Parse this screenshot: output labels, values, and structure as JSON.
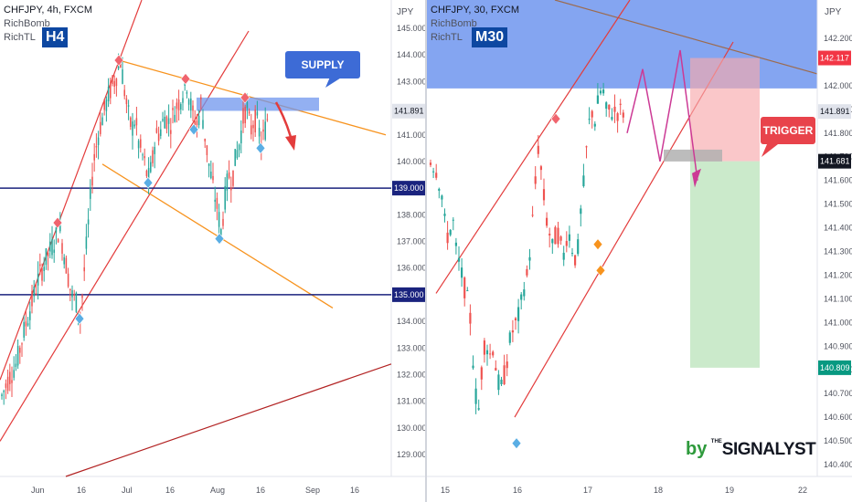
{
  "chart_data": [
    {
      "type": "candlestick",
      "symbol_line": "CHFJPY, 4h, FXCM",
      "indicators": [
        "RichBomb",
        "RichTL"
      ],
      "timeframe_badge": "H4",
      "y_unit": "JPY",
      "ylim": [
        128.3,
        146.2
      ],
      "y_ticks": [
        "145.000",
        "144.000",
        "143.000",
        "142.000",
        "141.000",
        "140.000",
        "139.000",
        "138.000",
        "137.000",
        "136.000",
        "135.000",
        "134.000",
        "133.000",
        "132.000",
        "131.000",
        "130.000",
        "129.000"
      ],
      "x_ticks": [
        "Jun",
        "16",
        "Jul",
        "16",
        "Aug",
        "16",
        "Sep",
        "16"
      ],
      "current_price_label": "141.891",
      "horizontal_levels": [
        {
          "label": "139.000",
          "value": 139.0
        },
        {
          "label": "135.000",
          "value": 135.0
        }
      ],
      "annotation": "SUPPLY ZONE",
      "series_points": [
        [
          0,
          131.2
        ],
        [
          8,
          131.9
        ],
        [
          16,
          132.4
        ],
        [
          24,
          133.6
        ],
        [
          32,
          134.6
        ],
        [
          40,
          135.6
        ],
        [
          48,
          136.3
        ],
        [
          56,
          136.9
        ],
        [
          63,
          137.5
        ],
        [
          70,
          136.2
        ],
        [
          76,
          135.0
        ],
        [
          82,
          134.7
        ],
        [
          86,
          134.1
        ],
        [
          90,
          135.8
        ],
        [
          95,
          137.8
        ],
        [
          100,
          139.9
        ],
        [
          106,
          141.1
        ],
        [
          112,
          141.9
        ],
        [
          118,
          142.6
        ],
        [
          124,
          143.1
        ],
        [
          130,
          143.8
        ],
        [
          134,
          142.7
        ],
        [
          138,
          141.8
        ],
        [
          142,
          141.2
        ],
        [
          146,
          141.6
        ],
        [
          150,
          140.6
        ],
        [
          155,
          140.1
        ],
        [
          160,
          139.3
        ],
        [
          164,
          139.8
        ],
        [
          168,
          140.9
        ],
        [
          174,
          141.2
        ],
        [
          178,
          141.7
        ],
        [
          184,
          141.4
        ],
        [
          190,
          142.0
        ],
        [
          196,
          142.4
        ],
        [
          202,
          143.0
        ],
        [
          206,
          142.2
        ],
        [
          210,
          141.6
        ],
        [
          214,
          141.4
        ],
        [
          218,
          142.2
        ],
        [
          222,
          141.0
        ],
        [
          226,
          140.0
        ],
        [
          230,
          139.2
        ],
        [
          236,
          138.2
        ],
        [
          240,
          137.3
        ],
        [
          244,
          138.6
        ],
        [
          248,
          139.5
        ],
        [
          252,
          139.3
        ],
        [
          256,
          140.2
        ],
        [
          260,
          140.7
        ],
        [
          264,
          141.6
        ],
        [
          268,
          142.1
        ],
        [
          272,
          141.1
        ],
        [
          276,
          141.6
        ],
        [
          280,
          141.4
        ],
        [
          284,
          140.6
        ],
        [
          288,
          141.2
        ],
        [
          292,
          141.9
        ]
      ]
    },
    {
      "type": "candlestick",
      "symbol_line": "CHFJPY, 30, FXCM",
      "indicators": [
        "RichBomb",
        "RichTL"
      ],
      "timeframe_badge": "M30",
      "y_unit": "JPY",
      "ylim": [
        140.3,
        142.3
      ],
      "y_ticks": [
        "142.200",
        "142.000",
        "141.900",
        "141.800",
        "141.700",
        "141.600",
        "141.500",
        "141.400",
        "141.300",
        "141.200",
        "141.100",
        "141.000",
        "140.900",
        "140.800",
        "140.700",
        "140.600",
        "140.500",
        "140.400"
      ],
      "x_ticks": [
        "15",
        "16",
        "17",
        "18",
        "19",
        "22"
      ],
      "price_labels": [
        {
          "label": "142.117",
          "value": 142.117,
          "color": "#f23645"
        },
        {
          "label": "141.891",
          "value": 141.891,
          "color": "#e0e3eb"
        },
        {
          "label": "141.681",
          "value": 141.681,
          "color": "#131722"
        },
        {
          "label": "140.809",
          "value": 140.809,
          "color": "#089981"
        }
      ],
      "annotation": "TRIGGER",
      "series_points": [
        [
          0,
          141.7
        ],
        [
          8,
          141.65
        ],
        [
          14,
          141.55
        ],
        [
          18,
          141.4
        ],
        [
          22,
          141.35
        ],
        [
          26,
          141.45
        ],
        [
          30,
          141.3
        ],
        [
          36,
          141.2
        ],
        [
          42,
          141.1
        ],
        [
          46,
          141.0
        ],
        [
          50,
          140.75
        ],
        [
          54,
          140.6
        ],
        [
          58,
          140.8
        ],
        [
          62,
          140.95
        ],
        [
          66,
          140.85
        ],
        [
          70,
          140.9
        ],
        [
          74,
          140.8
        ],
        [
          78,
          140.7
        ],
        [
          84,
          140.8
        ],
        [
          90,
          140.95
        ],
        [
          96,
          141.0
        ],
        [
          100,
          141.05
        ],
        [
          104,
          141.15
        ],
        [
          108,
          141.2
        ],
        [
          112,
          141.35
        ],
        [
          116,
          141.55
        ],
        [
          120,
          141.75
        ],
        [
          124,
          141.6
        ],
        [
          128,
          141.45
        ],
        [
          132,
          141.38
        ],
        [
          136,
          141.3
        ],
        [
          140,
          141.4
        ],
        [
          144,
          141.33
        ],
        [
          148,
          141.28
        ],
        [
          152,
          141.4
        ],
        [
          158,
          141.3
        ],
        [
          162,
          141.25
        ],
        [
          166,
          141.45
        ],
        [
          170,
          141.6
        ],
        [
          174,
          141.8
        ],
        [
          178,
          141.9
        ],
        [
          182,
          141.85
        ],
        [
          186,
          141.95
        ],
        [
          190,
          142.0
        ],
        [
          194,
          141.89
        ]
      ]
    }
  ],
  "watermark": {
    "prefix": "by",
    "brand": "SIGNALYST",
    "brand_lead": "THE"
  }
}
